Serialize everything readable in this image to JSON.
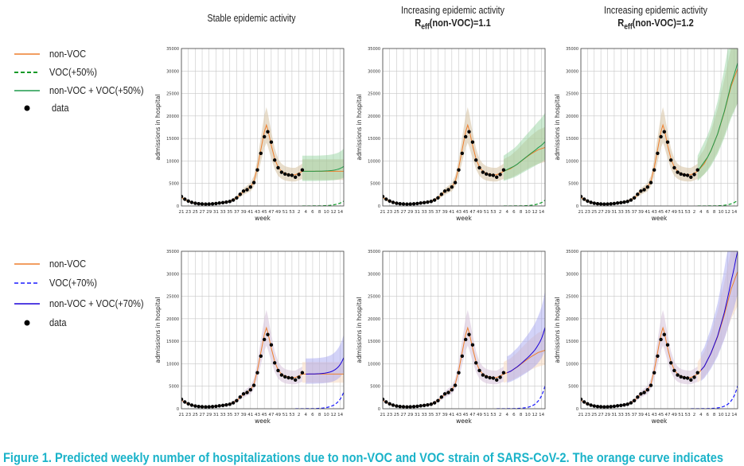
{
  "column_titles": [
    {
      "line1": "Stable epidemic activity",
      "reff_prefix": "",
      "reff_sub": "",
      "reff_suffix": ""
    },
    {
      "line1": "Increasing epidemic activity",
      "reff_prefix": "R",
      "reff_sub": "eff",
      "reff_suffix": "(non-VOC)=1.1"
    },
    {
      "line1": "Increasing epidemic activity",
      "reff_prefix": "R",
      "reff_sub": "eff",
      "reff_suffix": "(non-VOC)=1.2"
    }
  ],
  "legends": [
    {
      "items": [
        {
          "label": "non-VOC",
          "style": "solid",
          "color": "#ee7f2d"
        },
        {
          "label": "VOC(+50%)",
          "style": "dashed",
          "color": "#0f9a28"
        },
        {
          "label": "non-VOC + VOC(+50%)",
          "style": "solid",
          "color": "#1f9a4c"
        },
        {
          "label": "data",
          "style": "dot",
          "color": "#000000"
        }
      ]
    },
    {
      "items": [
        {
          "label": "non-VOC",
          "style": "solid",
          "color": "#ee7f2d"
        },
        {
          "label": "VOC(+70%)",
          "style": "dashed",
          "color": "#1a1aff"
        },
        {
          "label": "non-VOC + VOC(+70%)",
          "style": "solid",
          "color": "#1a00d8"
        },
        {
          "label": "data",
          "style": "dot",
          "color": "#000000"
        }
      ]
    }
  ],
  "caption": "Figure 1. Predicted weekly number of hospitalizations due to non-VOC and VOC strain of SARS-CoV-2. The orange curve indicates",
  "colors": {
    "non_voc": "#ee7f2d",
    "non_voc_band": "#d9c7a8",
    "voc50": "#0f9a28",
    "total50": "#1f9a4c",
    "band50": "#8fd19a",
    "voc70": "#1a1aff",
    "total70": "#1a00d8",
    "band70": "#9d9df0",
    "band_total70": "#c9b6dc",
    "grid": "#c8c8c8",
    "data": "#000000"
  },
  "chart_data": [
    {
      "id": "r1c1",
      "type": "line",
      "xlabel": "week",
      "ylabel": "admissions in hospital",
      "ylim": [
        0,
        35000
      ],
      "voc": "50",
      "scenario": "stable",
      "x_ticks": [
        "21",
        "23",
        "25",
        "27",
        "29",
        "31",
        "33",
        "35",
        "37",
        "39",
        "41",
        "43",
        "45",
        "47",
        "49",
        "51",
        "53",
        "2",
        "4",
        "6",
        "8",
        "10",
        "12",
        "14"
      ],
      "y_ticks": [
        "0",
        "5000",
        "10000",
        "15000",
        "20000",
        "25000",
        "30000",
        "35000"
      ],
      "grid": true
    },
    {
      "id": "r1c2",
      "type": "line",
      "xlabel": "week",
      "ylabel": "admissions in hospital",
      "ylim": [
        0,
        35000
      ],
      "voc": "50",
      "scenario": "r11",
      "x_ticks": [
        "21",
        "23",
        "25",
        "27",
        "29",
        "31",
        "33",
        "35",
        "37",
        "39",
        "41",
        "43",
        "45",
        "47",
        "49",
        "51",
        "53",
        "2",
        "4",
        "6",
        "8",
        "10",
        "12",
        "14"
      ],
      "y_ticks": [
        "0",
        "5000",
        "10000",
        "15000",
        "20000",
        "25000",
        "30000",
        "35000"
      ],
      "grid": true
    },
    {
      "id": "r1c3",
      "type": "line",
      "xlabel": "week",
      "ylabel": "admissions in hospital",
      "ylim": [
        0,
        35000
      ],
      "voc": "50",
      "scenario": "r12",
      "x_ticks": [
        "21",
        "23",
        "25",
        "27",
        "29",
        "31",
        "33",
        "35",
        "37",
        "39",
        "41",
        "43",
        "45",
        "47",
        "49",
        "51",
        "53",
        "2",
        "4",
        "6",
        "8",
        "10",
        "12",
        "14"
      ],
      "y_ticks": [
        "0",
        "5000",
        "10000",
        "15000",
        "20000",
        "25000",
        "30000",
        "35000"
      ],
      "grid": true
    },
    {
      "id": "r2c1",
      "type": "line",
      "xlabel": "week",
      "ylabel": "admissions in hospital",
      "ylim": [
        0,
        35000
      ],
      "voc": "70",
      "scenario": "stable",
      "x_ticks": [
        "21",
        "23",
        "25",
        "27",
        "29",
        "31",
        "33",
        "35",
        "37",
        "39",
        "41",
        "43",
        "45",
        "47",
        "49",
        "51",
        "53",
        "2",
        "4",
        "6",
        "8",
        "10",
        "12",
        "14"
      ],
      "y_ticks": [
        "0",
        "5000",
        "10000",
        "15000",
        "20000",
        "25000",
        "30000",
        "35000"
      ],
      "grid": true
    },
    {
      "id": "r2c2",
      "type": "line",
      "xlabel": "week",
      "ylabel": "admissions in hospital",
      "ylim": [
        0,
        35000
      ],
      "voc": "70",
      "scenario": "r11",
      "x_ticks": [
        "21",
        "23",
        "25",
        "27",
        "29",
        "31",
        "33",
        "35",
        "37",
        "39",
        "41",
        "43",
        "45",
        "47",
        "49",
        "51",
        "53",
        "2",
        "4",
        "6",
        "8",
        "10",
        "12",
        "14"
      ],
      "y_ticks": [
        "0",
        "5000",
        "10000",
        "15000",
        "20000",
        "25000",
        "30000",
        "35000"
      ],
      "grid": true
    },
    {
      "id": "r2c3",
      "type": "line",
      "xlabel": "week",
      "ylabel": "admissions in hospital",
      "ylim": [
        0,
        35000
      ],
      "voc": "70",
      "scenario": "r12",
      "x_ticks": [
        "21",
        "23",
        "25",
        "27",
        "29",
        "31",
        "33",
        "35",
        "37",
        "39",
        "41",
        "43",
        "45",
        "47",
        "49",
        "51",
        "53",
        "2",
        "4",
        "6",
        "8",
        "10",
        "12",
        "14"
      ],
      "y_ticks": [
        "0",
        "5000",
        "10000",
        "15000",
        "20000",
        "25000",
        "30000",
        "35000"
      ],
      "grid": true
    }
  ],
  "series_data": {
    "observed": [
      [
        0,
        2100
      ],
      [
        1,
        1500
      ],
      [
        2,
        1100
      ],
      [
        3,
        800
      ],
      [
        4,
        600
      ],
      [
        5,
        500
      ],
      [
        6,
        450
      ],
      [
        7,
        400
      ],
      [
        8,
        420
      ],
      [
        9,
        480
      ],
      [
        10,
        550
      ],
      [
        11,
        650
      ],
      [
        12,
        750
      ],
      [
        13,
        850
      ],
      [
        14,
        1000
      ],
      [
        15,
        1300
      ],
      [
        16,
        1800
      ],
      [
        17,
        2600
      ],
      [
        18,
        3300
      ],
      [
        19,
        3600
      ],
      [
        20,
        4200
      ],
      [
        21,
        5200
      ],
      [
        22,
        8000
      ],
      [
        23,
        11700
      ],
      [
        24,
        15400
      ],
      [
        25,
        16500
      ],
      [
        26,
        14200
      ],
      [
        27,
        10200
      ],
      [
        28,
        8500
      ],
      [
        29,
        7500
      ],
      [
        30,
        7100
      ],
      [
        31,
        6900
      ],
      [
        32,
        6800
      ],
      [
        33,
        6400
      ],
      [
        34,
        7000
      ],
      [
        35,
        8000
      ]
    ],
    "non_voc_fit": [
      [
        0,
        1900
      ],
      [
        2,
        1050
      ],
      [
        4,
        600
      ],
      [
        6,
        430
      ],
      [
        8,
        430
      ],
      [
        10,
        560
      ],
      [
        12,
        760
      ],
      [
        14,
        1050
      ],
      [
        16,
        1800
      ],
      [
        18,
        3200
      ],
      [
        20,
        4200
      ],
      [
        21,
        5500
      ],
      [
        22,
        8500
      ],
      [
        23,
        12500
      ],
      [
        24,
        16500
      ],
      [
        24.6,
        18000
      ],
      [
        25,
        17000
      ],
      [
        26,
        13500
      ],
      [
        27,
        10500
      ],
      [
        28,
        8600
      ],
      [
        29,
        7700
      ],
      [
        30,
        7250
      ],
      [
        31,
        7050
      ],
      [
        32,
        6950
      ],
      [
        33,
        6950
      ],
      [
        34,
        7300
      ],
      [
        35,
        7700
      ]
    ],
    "stable_non_voc": [
      [
        35,
        7700
      ],
      [
        38,
        7700
      ],
      [
        41,
        7700
      ],
      [
        44,
        7700
      ],
      [
        47,
        7700
      ]
    ],
    "r11_non_voc": [
      [
        35,
        7700
      ],
      [
        37,
        8300
      ],
      [
        39,
        9300
      ],
      [
        41,
        10500
      ],
      [
        43,
        11600
      ],
      [
        45,
        12500
      ],
      [
        47,
        13000
      ]
    ],
    "r12_non_voc": [
      [
        35,
        7700
      ],
      [
        37,
        9400
      ],
      [
        39,
        12300
      ],
      [
        41,
        16000
      ],
      [
        43,
        20800
      ],
      [
        45,
        26500
      ],
      [
        47,
        30500
      ]
    ]
  }
}
